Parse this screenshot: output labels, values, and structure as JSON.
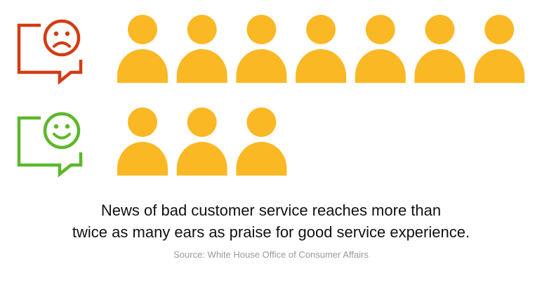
{
  "colors": {
    "bad": "#d23c12",
    "good": "#5cb82a",
    "person": "#fbb825"
  },
  "chart_data": {
    "type": "pictogram",
    "series": [
      {
        "icon": "sad-face-speech-bubble-icon",
        "values": 7
      },
      {
        "icon": "happy-face-speech-bubble-icon",
        "values": 3
      }
    ]
  },
  "caption": {
    "line1": "News of bad customer service reaches more than",
    "line2": "twice as many ears as praise for good service experience."
  },
  "source": "Source: White House Office of Consumer Affairs"
}
